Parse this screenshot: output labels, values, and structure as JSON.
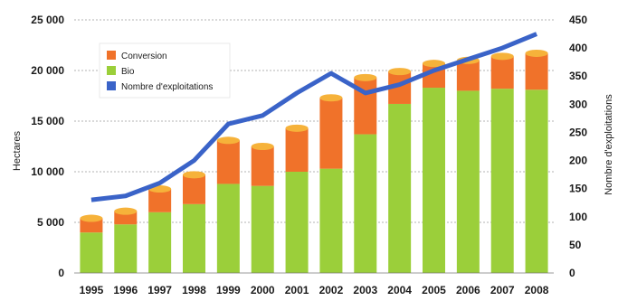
{
  "chart_data": {
    "type": "bar",
    "categories": [
      "1995",
      "1996",
      "1997",
      "1998",
      "1999",
      "2000",
      "2001",
      "2002",
      "2003",
      "2004",
      "2005",
      "2006",
      "2007",
      "2008"
    ],
    "series": [
      {
        "name": "Bio",
        "values": [
          4000,
          4800,
          6000,
          6800,
          8800,
          8600,
          10000,
          10300,
          13700,
          16700,
          18300,
          18000,
          18200,
          18100
        ],
        "color": "#9bcf3a",
        "top_color": "#bfe36a"
      },
      {
        "name": "Conversion",
        "values": [
          1400,
          1300,
          2300,
          2900,
          4300,
          3900,
          4300,
          7000,
          5600,
          3200,
          2400,
          3000,
          3200,
          3600
        ],
        "color": "#f0722a",
        "top_color": "#f6b23a"
      }
    ],
    "line": {
      "name": "Nombre d'exploitations",
      "values": [
        130,
        137,
        160,
        200,
        265,
        280,
        320,
        355,
        320,
        335,
        360,
        380,
        400,
        425
      ],
      "color": "#3a63c8"
    },
    "ylabel": "Hectares",
    "y2label": "Nombre d'exploitations",
    "ylim": [
      0,
      25000
    ],
    "y2lim": [
      0,
      450
    ],
    "yticks": [
      0,
      5000,
      10000,
      15000,
      20000,
      25000
    ],
    "yticklabels": [
      "0",
      "5 000",
      "10 000",
      "15 000",
      "20 000",
      "25 000"
    ],
    "y2ticks": [
      0,
      50,
      100,
      150,
      200,
      250,
      300,
      350,
      400,
      450
    ],
    "legend": {
      "placement": "top-left",
      "entries": [
        {
          "label": "Conversion",
          "color": "#f0722a"
        },
        {
          "label": "Bio",
          "color": "#9bcf3a"
        },
        {
          "label": "Nombre d'exploitations",
          "color": "#3a63c8"
        }
      ]
    },
    "grid": true
  }
}
